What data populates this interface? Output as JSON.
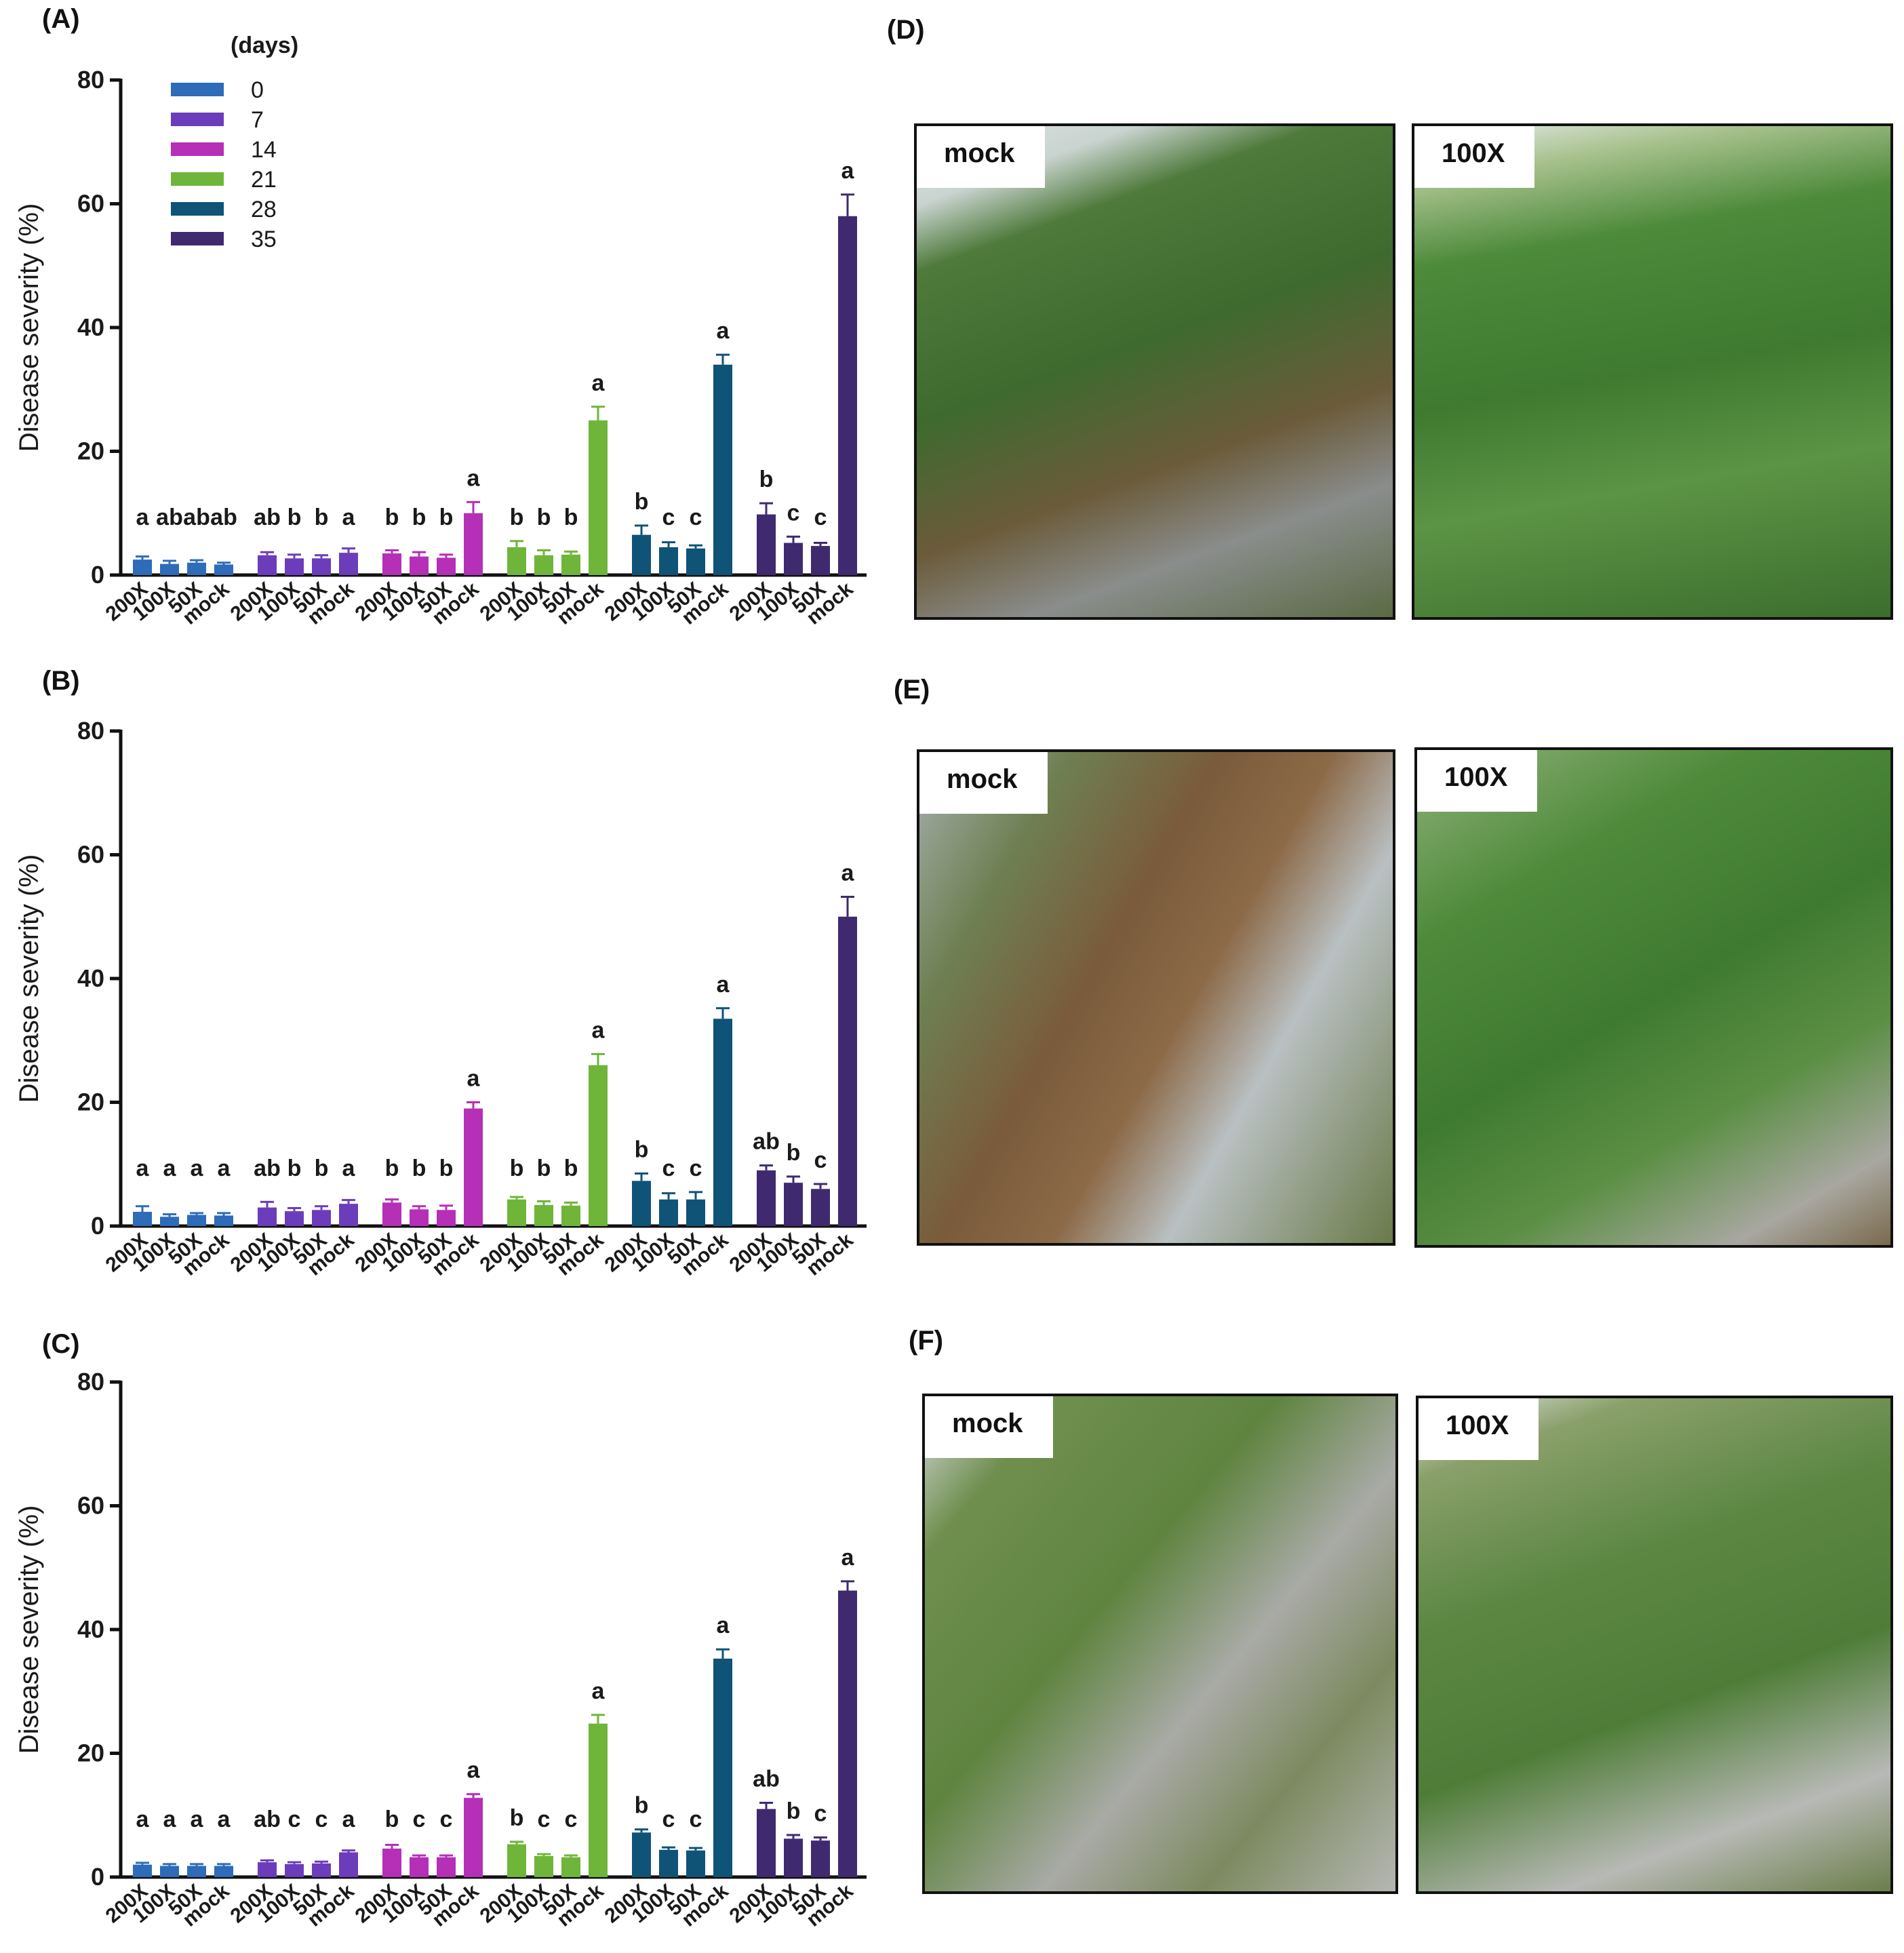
{
  "panels": {
    "A": "(A)",
    "B": "(B)",
    "C": "(C)",
    "D": "(D)",
    "E": "(E)",
    "F": "(F)"
  },
  "legend": {
    "title": "(days)",
    "entries": [
      {
        "label": "0",
        "color": "#2e6bb8"
      },
      {
        "label": "7",
        "color": "#6b3dbb"
      },
      {
        "label": "14",
        "color": "#b52fb7"
      },
      {
        "label": "21",
        "color": "#6fb53a"
      },
      {
        "label": "28",
        "color": "#0f5377"
      },
      {
        "label": "35",
        "color": "#3f2a6f"
      }
    ]
  },
  "chart_data": [
    {
      "type": "bar",
      "panel": "(A)",
      "ylabel": "Disease severity (%)",
      "ylim": [
        0,
        80
      ],
      "yticks": [
        0,
        20,
        40,
        60,
        80
      ],
      "categories": [
        "200X",
        "100X",
        "50X",
        "mock"
      ],
      "series": [
        {
          "name": "0",
          "values": [
            2.5,
            1.8,
            2.0,
            1.7
          ],
          "errors": [
            0.5,
            0.5,
            0.4,
            0.3
          ],
          "letters": [
            "a",
            "ab",
            "ab",
            "ab"
          ]
        },
        {
          "name": "7",
          "values": [
            3.2,
            2.7,
            2.7,
            3.6
          ],
          "errors": [
            0.5,
            0.6,
            0.5,
            0.7
          ],
          "letters": [
            "ab",
            "b",
            "b",
            "a"
          ]
        },
        {
          "name": "14",
          "values": [
            3.5,
            3.0,
            2.8,
            10.0
          ],
          "errors": [
            0.5,
            0.7,
            0.5,
            1.8
          ],
          "letters": [
            "b",
            "b",
            "b",
            "a"
          ]
        },
        {
          "name": "21",
          "values": [
            4.5,
            3.2,
            3.3,
            25.0
          ],
          "errors": [
            1.0,
            0.8,
            0.5,
            2.2
          ],
          "letters": [
            "b",
            "b",
            "b",
            "a"
          ]
        },
        {
          "name": "28",
          "values": [
            6.5,
            4.5,
            4.3,
            34.0
          ],
          "errors": [
            1.5,
            0.8,
            0.5,
            1.6
          ],
          "letters": [
            "b",
            "c",
            "c",
            "a"
          ]
        },
        {
          "name": "35",
          "values": [
            9.8,
            5.2,
            4.7,
            58.0
          ],
          "errors": [
            1.8,
            1.0,
            0.5,
            3.5
          ],
          "letters": [
            "b",
            "c",
            "c",
            "a"
          ]
        }
      ]
    },
    {
      "type": "bar",
      "panel": "(B)",
      "ylabel": "Disease severity (%)",
      "ylim": [
        0,
        80
      ],
      "yticks": [
        0,
        20,
        40,
        60,
        80
      ],
      "categories": [
        "200X",
        "100X",
        "50X",
        "mock"
      ],
      "series": [
        {
          "name": "0",
          "values": [
            2.3,
            1.5,
            1.8,
            1.7
          ],
          "errors": [
            0.9,
            0.4,
            0.3,
            0.4
          ],
          "letters": [
            "a",
            "a",
            "a",
            "a"
          ]
        },
        {
          "name": "7",
          "values": [
            3.0,
            2.4,
            2.6,
            3.6
          ],
          "errors": [
            0.9,
            0.5,
            0.6,
            0.6
          ],
          "letters": [
            "ab",
            "b",
            "b",
            "a"
          ]
        },
        {
          "name": "14",
          "values": [
            3.8,
            2.7,
            2.6,
            19.0
          ],
          "errors": [
            0.5,
            0.5,
            0.7,
            1.0
          ],
          "letters": [
            "b",
            "b",
            "b",
            "a"
          ]
        },
        {
          "name": "21",
          "values": [
            4.3,
            3.4,
            3.3,
            26.0
          ],
          "errors": [
            0.4,
            0.6,
            0.5,
            1.8
          ],
          "letters": [
            "b",
            "b",
            "b",
            "a"
          ]
        },
        {
          "name": "28",
          "values": [
            7.3,
            4.3,
            4.3,
            33.5
          ],
          "errors": [
            1.2,
            1.0,
            1.2,
            1.7
          ],
          "letters": [
            "b",
            "c",
            "c",
            "a"
          ]
        },
        {
          "name": "35",
          "values": [
            9.0,
            7.0,
            6.0,
            50.0
          ],
          "errors": [
            0.8,
            1.0,
            0.8,
            3.2
          ],
          "letters": [
            "ab",
            "b",
            "c",
            "a"
          ]
        }
      ]
    },
    {
      "type": "bar",
      "panel": "(C)",
      "ylabel": "Disease severity (%)",
      "ylim": [
        0,
        80
      ],
      "yticks": [
        0,
        20,
        40,
        60,
        80
      ],
      "categories": [
        "200X",
        "100X",
        "50X",
        "mock"
      ],
      "series": [
        {
          "name": "0",
          "values": [
            2.0,
            1.8,
            1.8,
            1.8
          ],
          "errors": [
            0.3,
            0.3,
            0.3,
            0.3
          ],
          "letters": [
            "a",
            "a",
            "a",
            "a"
          ]
        },
        {
          "name": "7",
          "values": [
            2.4,
            2.1,
            2.2,
            4.0
          ],
          "errors": [
            0.3,
            0.3,
            0.3,
            0.3
          ],
          "letters": [
            "ab",
            "c",
            "c",
            "a"
          ]
        },
        {
          "name": "14",
          "values": [
            4.6,
            3.2,
            3.2,
            12.8
          ],
          "errors": [
            0.6,
            0.3,
            0.3,
            0.6
          ],
          "letters": [
            "b",
            "c",
            "c",
            "a"
          ]
        },
        {
          "name": "21",
          "values": [
            5.3,
            3.4,
            3.2,
            24.8
          ],
          "errors": [
            0.4,
            0.3,
            0.3,
            1.4
          ],
          "letters": [
            "b",
            "c",
            "c",
            "a"
          ]
        },
        {
          "name": "28",
          "values": [
            7.2,
            4.4,
            4.3,
            35.3
          ],
          "errors": [
            0.5,
            0.4,
            0.4,
            1.5
          ],
          "letters": [
            "b",
            "c",
            "c",
            "a"
          ]
        },
        {
          "name": "35",
          "values": [
            11.0,
            6.2,
            5.9,
            46.3
          ],
          "errors": [
            1.0,
            0.6,
            0.5,
            1.5
          ],
          "letters": [
            "ab",
            "b",
            "c",
            "a"
          ]
        }
      ]
    }
  ],
  "photos": [
    {
      "panel": "D",
      "left_tag": "mock",
      "right_tag": "100X"
    },
    {
      "panel": "E",
      "left_tag": "mock",
      "right_tag": "100X"
    },
    {
      "panel": "F",
      "left_tag": "mock",
      "right_tag": "100X"
    }
  ]
}
